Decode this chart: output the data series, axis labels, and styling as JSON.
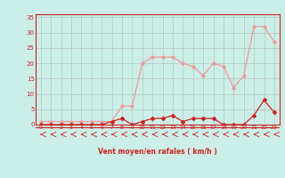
{
  "x": [
    0,
    1,
    2,
    3,
    4,
    5,
    6,
    7,
    8,
    9,
    10,
    11,
    12,
    13,
    14,
    15,
    16,
    17,
    18,
    19,
    20,
    21,
    22,
    23
  ],
  "vent_moyen": [
    0,
    0,
    0,
    0,
    0,
    0,
    0,
    1,
    2,
    0,
    1,
    2,
    2,
    3,
    1,
    2,
    2,
    2,
    0,
    0,
    0,
    3,
    8,
    4
  ],
  "rafales": [
    1,
    1,
    1,
    1,
    1,
    1,
    1,
    1,
    6,
    6,
    20,
    22,
    22,
    22,
    20,
    19,
    16,
    20,
    19,
    12,
    16,
    32,
    32,
    27
  ],
  "xlabel": "Vent moyen/en rafales ( km/h )",
  "ylim": [
    0,
    36
  ],
  "xlim": [
    -0.5,
    23.5
  ],
  "yticks": [
    0,
    5,
    10,
    15,
    20,
    25,
    30,
    35
  ],
  "xticks": [
    0,
    1,
    2,
    3,
    4,
    5,
    6,
    7,
    8,
    9,
    10,
    11,
    12,
    13,
    14,
    15,
    16,
    17,
    18,
    19,
    20,
    21,
    22,
    23
  ],
  "bg_color": "#cceee8",
  "grid_color": "#aaaaaa",
  "line_color_moyen": "#cc2222",
  "line_color_rafales": "#ee9999",
  "label_color": "#cc2222"
}
